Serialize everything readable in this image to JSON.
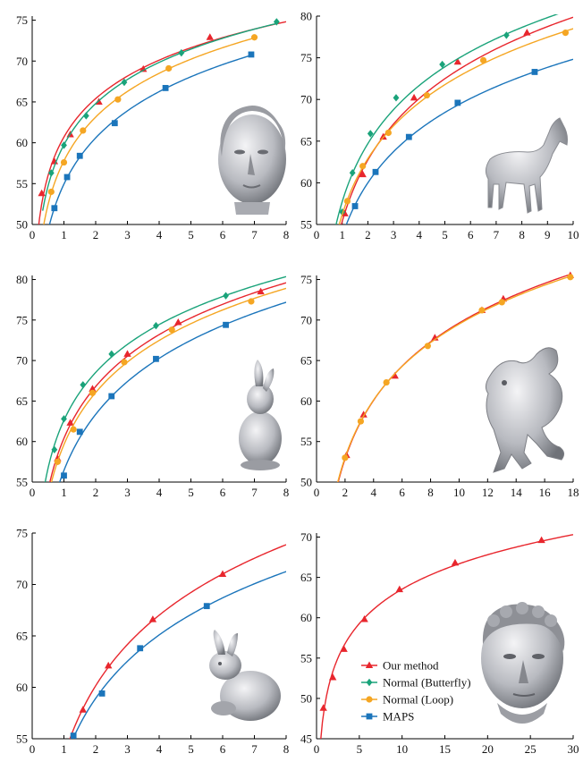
{
  "colors": {
    "Our method": "#e8262d",
    "Normal (Butterfly)": "#1aa37a",
    "Normal (Loop)": "#f5a623",
    "MAPS": "#1b75bb"
  },
  "markers": {
    "Our method": "triangle",
    "Normal (Butterfly)": "diamond",
    "Normal (Loop)": "circle",
    "MAPS": "square"
  },
  "legend": {
    "entries": [
      "Our method",
      "Normal (Butterfly)",
      "Normal (Loop)",
      "MAPS"
    ],
    "placement": "inside-right of bottom-right panel"
  },
  "chart_data": [
    {
      "type": "line",
      "model_icon": "woman-head-icon",
      "xlim": [
        0,
        8
      ],
      "ylim": [
        50,
        75.5
      ],
      "xticks": [
        "0",
        "1",
        "2",
        "3",
        "4",
        "5",
        "6",
        "7",
        "8"
      ],
      "yticks": [
        "50",
        "55",
        "60",
        "65",
        "70",
        "75"
      ],
      "series": [
        {
          "name": "Our method",
          "x": [
            0.3,
            0.7,
            1.2,
            2.1,
            3.5,
            5.6,
            8.0
          ],
          "y": [
            53.8,
            57.7,
            61.0,
            65.0,
            69.0,
            72.9,
            75.5
          ]
        },
        {
          "name": "Normal (Butterfly)",
          "x": [
            0.6,
            1.0,
            1.7,
            2.9,
            4.7,
            7.7
          ],
          "y": [
            56.3,
            59.7,
            63.3,
            67.4,
            71.0,
            74.8
          ]
        },
        {
          "name": "Normal (Loop)",
          "x": [
            0.6,
            1.0,
            1.6,
            2.7,
            4.3,
            7.0
          ],
          "y": [
            54.0,
            57.6,
            61.5,
            65.3,
            69.1,
            72.9
          ]
        },
        {
          "name": "MAPS",
          "x": [
            0.7,
            1.1,
            1.5,
            2.6,
            4.2,
            6.9
          ],
          "y": [
            52.0,
            55.8,
            58.4,
            62.4,
            66.7,
            70.8
          ]
        }
      ]
    },
    {
      "type": "line",
      "model_icon": "horse-icon",
      "xlim": [
        0,
        10
      ],
      "ylim": [
        55,
        80
      ],
      "xticks": [
        "0",
        "1",
        "2",
        "3",
        "4",
        "5",
        "6",
        "7",
        "8",
        "9",
        "10"
      ],
      "yticks": [
        "55",
        "60",
        "65",
        "70",
        "75",
        "80"
      ],
      "series": [
        {
          "name": "Our method",
          "x": [
            1.1,
            1.8,
            2.6,
            3.8,
            5.5,
            8.2,
            10.0
          ],
          "y": [
            56.3,
            61.0,
            65.5,
            70.2,
            74.5,
            78.0,
            78.7
          ]
        },
        {
          "name": "Normal (Butterfly)",
          "x": [
            1.0,
            1.4,
            2.1,
            3.1,
            4.9,
            7.4,
            10.0
          ],
          "y": [
            56.5,
            61.2,
            65.9,
            70.2,
            74.2,
            77.7,
            79.9
          ]
        },
        {
          "name": "Normal (Loop)",
          "x": [
            1.2,
            1.8,
            2.8,
            4.3,
            6.5,
            9.7,
            10.0
          ],
          "y": [
            57.8,
            62.0,
            66.0,
            70.5,
            74.7,
            78.0,
            78.3
          ]
        },
        {
          "name": "MAPS",
          "x": [
            1.5,
            2.3,
            3.6,
            5.5,
            8.5,
            10.0
          ],
          "y": [
            57.2,
            61.3,
            65.5,
            69.6,
            73.3,
            74.6
          ]
        }
      ]
    },
    {
      "type": "line",
      "model_icon": "rabbit-icon",
      "xlim": [
        0,
        8
      ],
      "ylim": [
        55,
        80.5
      ],
      "xticks": [
        "0",
        "1",
        "2",
        "3",
        "4",
        "5",
        "6",
        "7",
        "8"
      ],
      "yticks": [
        "55",
        "60",
        "65",
        "70",
        "75",
        "80"
      ],
      "series": [
        {
          "name": "Our method",
          "x": [
            0.8,
            1.2,
            1.9,
            3.0,
            4.6,
            7.2,
            8.0
          ],
          "y": [
            57.9,
            62.3,
            66.5,
            70.8,
            74.7,
            78.5,
            79.3
          ]
        },
        {
          "name": "Normal (Butterfly)",
          "x": [
            0.7,
            1.0,
            1.6,
            2.5,
            3.9,
            6.1,
            8.0
          ],
          "y": [
            59.0,
            62.8,
            67.0,
            70.8,
            74.3,
            78.0,
            80.0
          ]
        },
        {
          "name": "Normal (Loop)",
          "x": [
            0.8,
            1.3,
            1.9,
            2.9,
            4.4,
            6.9,
            8.0
          ],
          "y": [
            57.5,
            61.5,
            66.0,
            69.8,
            73.8,
            77.3,
            78.6
          ]
        },
        {
          "name": "MAPS",
          "x": [
            1.0,
            1.5,
            2.5,
            3.9,
            6.1,
            8.0
          ],
          "y": [
            55.8,
            61.2,
            65.6,
            70.2,
            74.4,
            77.0
          ]
        }
      ]
    },
    {
      "type": "line",
      "model_icon": "dragon-icon",
      "xlim": [
        0,
        18
      ],
      "ylim": [
        50,
        75.5
      ],
      "xticks": [
        "0",
        "2",
        "4",
        "6",
        "8",
        "10",
        "12",
        "14",
        "16",
        "18"
      ],
      "yticks": [
        "50",
        "55",
        "60",
        "65",
        "70",
        "75"
      ],
      "series": [
        {
          "name": "Our method",
          "x": [
            2.1,
            3.3,
            5.5,
            8.3,
            11.6,
            13.1,
            17.8
          ],
          "y": [
            53.3,
            58.3,
            63.1,
            67.8,
            71.2,
            72.6,
            75.5
          ]
        },
        {
          "name": "Normal (Loop)",
          "x": [
            2.0,
            3.1,
            4.9,
            7.8,
            11.6,
            13.0,
            17.8
          ],
          "y": [
            53.0,
            57.5,
            62.3,
            66.8,
            71.2,
            72.2,
            75.3
          ]
        }
      ]
    },
    {
      "type": "line",
      "model_icon": "bunny-icon",
      "xlim": [
        0,
        8
      ],
      "ylim": [
        55,
        75
      ],
      "xticks": [
        "0",
        "1",
        "2",
        "3",
        "4",
        "5",
        "6",
        "7",
        "8"
      ],
      "yticks": [
        "55",
        "60",
        "65",
        "70",
        "75"
      ],
      "series": [
        {
          "name": "Our method",
          "x": [
            1.6,
            2.4,
            3.8,
            6.0,
            8.0
          ],
          "y": [
            57.8,
            62.1,
            66.6,
            71.0,
            73.8
          ]
        },
        {
          "name": "MAPS",
          "x": [
            1.3,
            2.2,
            3.4,
            5.5,
            8.0
          ],
          "y": [
            55.3,
            59.4,
            63.8,
            67.9,
            71.3
          ]
        }
      ]
    },
    {
      "type": "line",
      "model_icon": "david-head-icon",
      "xlim": [
        0,
        30
      ],
      "ylim": [
        45,
        70.5
      ],
      "xticks": [
        "0",
        "5",
        "10",
        "15",
        "20",
        "25",
        "30"
      ],
      "yticks": [
        "45",
        "50",
        "55",
        "60",
        "65",
        "70"
      ],
      "series": [
        {
          "name": "Our method",
          "x": [
            0.8,
            1.9,
            3.2,
            5.6,
            9.7,
            16.2,
            26.3,
            30.0
          ],
          "y": [
            48.8,
            52.6,
            56.1,
            59.8,
            63.5,
            66.8,
            69.6,
            70.3
          ]
        }
      ]
    }
  ]
}
